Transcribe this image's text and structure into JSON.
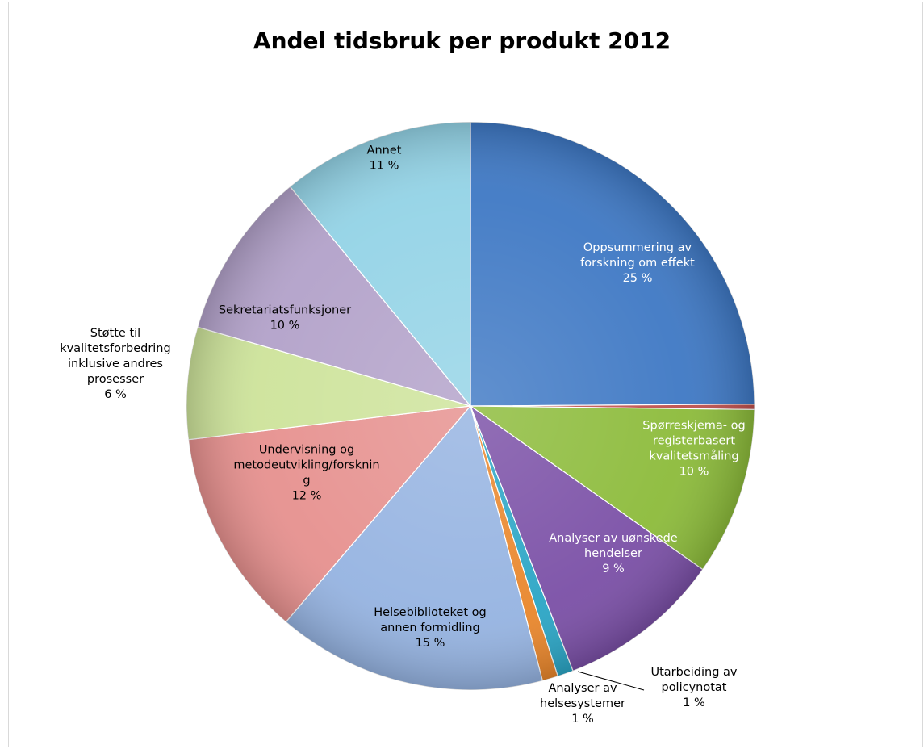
{
  "chart_data": {
    "type": "pie",
    "title": "Andel tidsbruk per produkt 2012",
    "slices": [
      {
        "label": [
          "Oppsummering av",
          "forskning om effekt"
        ],
        "percent_label": "25 %",
        "value": 25.0,
        "color": "#3e78c4",
        "label_color": "#ffffff"
      },
      {
        "label": [],
        "percent_label": "",
        "value": 0.3,
        "color": "#c0504d",
        "label_color": "#000000"
      },
      {
        "label": [
          "Spørreskjema- og",
          "registerbasert",
          "kvalitetsmåling"
        ],
        "percent_label": "10 %",
        "value": 9.6,
        "color": "#8cbb3a",
        "label_color": "#ffffff"
      },
      {
        "label": [
          "Analyser av uønskede",
          "hendelser"
        ],
        "percent_label": "9 %",
        "value": 9.4,
        "color": "#7a4fa6",
        "label_color": "#ffffff"
      },
      {
        "label": [
          "Utarbeiding av",
          "policynotat"
        ],
        "percent_label": "1 %",
        "value": 0.9,
        "color": "#2aa5c5",
        "label_color": "#000000"
      },
      {
        "label": [
          "Analyser av",
          "helsesystemer"
        ],
        "percent_label": "1 %",
        "value": 0.9,
        "color": "#e9862b",
        "label_color": "#000000"
      },
      {
        "label": [
          "Helsebiblioteket og",
          "annen formidling"
        ],
        "percent_label": "15 %",
        "value": 15.4,
        "color": "#95b3e1",
        "label_color": "#000000"
      },
      {
        "label": [
          "Undervisning og",
          "metodeutvikling/forsknin",
          "g"
        ],
        "percent_label": "12 %",
        "value": 11.9,
        "color": "#e6908e",
        "label_color": "#000000"
      },
      {
        "label": [
          "Støtte til",
          "kvalitetsforbedring",
          "inklusive andres",
          "prosesser"
        ],
        "percent_label": "6 %",
        "value": 6.4,
        "color": "#cde39a",
        "label_color": "#000000"
      },
      {
        "label": [
          "Sekretariatsfunksjoner"
        ],
        "percent_label": "10 %",
        "value": 9.6,
        "color": "#b2a1c9",
        "label_color": "#000000"
      },
      {
        "label": [
          "Annet"
        ],
        "percent_label": "11 %",
        "value": 11.0,
        "color": "#93d3e6",
        "label_color": "#000000"
      }
    ]
  }
}
